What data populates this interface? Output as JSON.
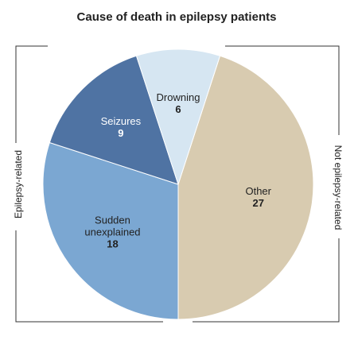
{
  "chart_data": {
    "type": "pie",
    "title": "Cause of death in epilepsy patients",
    "categories": [
      "Other",
      "Sudden unexplained",
      "Seizures",
      "Drowning"
    ],
    "values": [
      27,
      18,
      9,
      6
    ],
    "colors": [
      "#d8cbb0",
      "#7ba7d2",
      "#4f73a3",
      "#d6e6f2"
    ],
    "label_colors": [
      "#222222",
      "#222222",
      "#ffffff",
      "#222222"
    ],
    "annotations": [
      "Epilepsy-related",
      "Not epilepsy-related"
    ]
  }
}
